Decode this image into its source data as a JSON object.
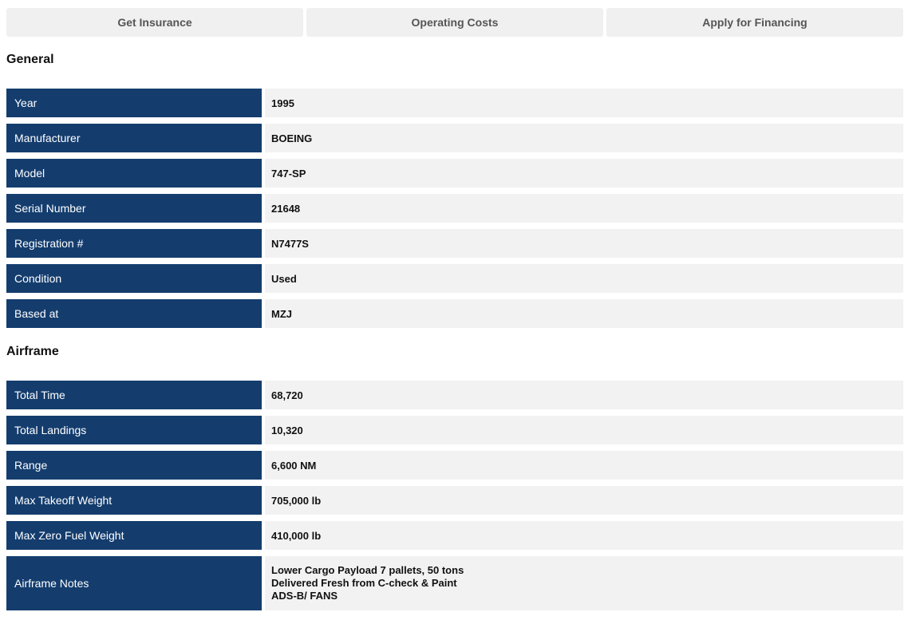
{
  "actions": [
    {
      "label": "Get Insurance"
    },
    {
      "label": "Operating Costs"
    },
    {
      "label": "Apply for Financing"
    }
  ],
  "sections": {
    "general": {
      "title": "General",
      "rows": [
        {
          "label": "Year",
          "value": "1995"
        },
        {
          "label": "Manufacturer",
          "value": "BOEING"
        },
        {
          "label": "Model",
          "value": "747-SP"
        },
        {
          "label": "Serial Number",
          "value": "21648"
        },
        {
          "label": "Registration #",
          "value": "N7477S"
        },
        {
          "label": "Condition",
          "value": "Used"
        },
        {
          "label": "Based at",
          "value": "MZJ"
        }
      ]
    },
    "airframe": {
      "title": "Airframe",
      "rows": [
        {
          "label": "Total Time",
          "value": "68,720"
        },
        {
          "label": "Total Landings",
          "value": "10,320"
        },
        {
          "label": "Range",
          "value": "6,600 NM"
        },
        {
          "label": "Max Takeoff Weight",
          "value": "705,000 lb"
        },
        {
          "label": "Max Zero Fuel Weight",
          "value": "410,000 lb"
        }
      ],
      "notes": {
        "label": "Airframe Notes",
        "lines": [
          "Lower Cargo Payload 7 pallets, 50 tons",
          "Delivered Fresh from C-check & Paint",
          "ADS-B/ FANS"
        ]
      }
    }
  },
  "colors": {
    "label_bg": "#143d6e",
    "value_bg": "#f2f2f2",
    "button_bg": "#f0f0f0"
  }
}
